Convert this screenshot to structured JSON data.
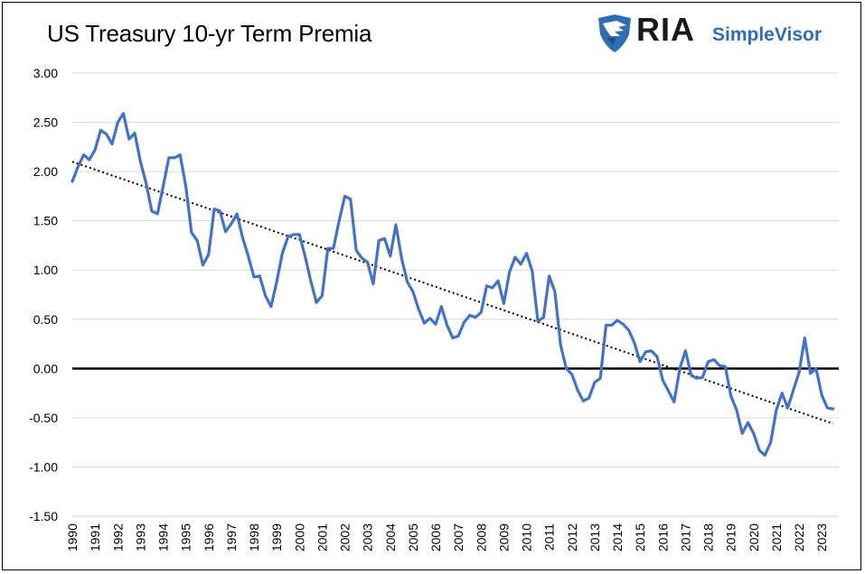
{
  "chart_data": {
    "type": "line",
    "title": "US Treasury 10-yr Term Premia",
    "xlabel": "",
    "ylabel": "",
    "ylim": [
      -1.5,
      3.0
    ],
    "ytick_step": 0.5,
    "xlim": [
      1990,
      2023.75
    ],
    "yticks": [
      "3.00",
      "2.50",
      "2.00",
      "1.50",
      "1.00",
      "0.50",
      "0.00",
      "-0.50",
      "-1.00",
      "-1.50"
    ],
    "xticks": [
      "1990",
      "1991",
      "1992",
      "1993",
      "1994",
      "1995",
      "1996",
      "1997",
      "1998",
      "1999",
      "2000",
      "2001",
      "2002",
      "2003",
      "2004",
      "2005",
      "2006",
      "2007",
      "2008",
      "2009",
      "2010",
      "2011",
      "2012",
      "2013",
      "2014",
      "2015",
      "2016",
      "2017",
      "2018",
      "2019",
      "2020",
      "2021",
      "2022",
      "2023"
    ],
    "grid": true,
    "zero_line": true,
    "series": [
      {
        "color": "#4472c4",
        "x": [
          1990.0,
          1990.25,
          1990.5,
          1990.75,
          1991.0,
          1991.25,
          1991.5,
          1991.75,
          1992.0,
          1992.25,
          1992.5,
          1992.75,
          1993.0,
          1993.25,
          1993.5,
          1993.75,
          1994.0,
          1994.25,
          1994.5,
          1994.75,
          1995.0,
          1995.25,
          1995.5,
          1995.75,
          1996.0,
          1996.25,
          1996.5,
          1996.75,
          1997.0,
          1997.25,
          1997.5,
          1997.75,
          1998.0,
          1998.25,
          1998.5,
          1998.75,
          1999.0,
          1999.25,
          1999.5,
          1999.75,
          2000.0,
          2000.25,
          2000.5,
          2000.75,
          2001.0,
          2001.25,
          2001.5,
          2001.75,
          2002.0,
          2002.25,
          2002.5,
          2002.75,
          2003.0,
          2003.25,
          2003.5,
          2003.75,
          2004.0,
          2004.25,
          2004.5,
          2004.75,
          2005.0,
          2005.25,
          2005.5,
          2005.75,
          2006.0,
          2006.25,
          2006.5,
          2006.75,
          2007.0,
          2007.25,
          2007.5,
          2007.75,
          2008.0,
          2008.25,
          2008.5,
          2008.75,
          2009.0,
          2009.25,
          2009.5,
          2009.75,
          2010.0,
          2010.25,
          2010.5,
          2010.75,
          2011.0,
          2011.25,
          2011.5,
          2011.75,
          2012.0,
          2012.25,
          2012.5,
          2012.75,
          2013.0,
          2013.25,
          2013.5,
          2013.75,
          2014.0,
          2014.25,
          2014.5,
          2014.75,
          2015.0,
          2015.25,
          2015.5,
          2015.75,
          2016.0,
          2016.25,
          2016.5,
          2016.75,
          2017.0,
          2017.25,
          2017.5,
          2017.75,
          2018.0,
          2018.25,
          2018.5,
          2018.75,
          2019.0,
          2019.25,
          2019.5,
          2019.75,
          2020.0,
          2020.25,
          2020.5,
          2020.75,
          2021.0,
          2021.25,
          2021.5,
          2021.75,
          2022.0,
          2022.25,
          2022.5,
          2022.75,
          2023.0,
          2023.25,
          2023.5
        ],
        "values": [
          1.9,
          2.05,
          2.17,
          2.12,
          2.22,
          2.42,
          2.38,
          2.28,
          2.5,
          2.59,
          2.33,
          2.39,
          2.1,
          1.88,
          1.6,
          1.57,
          1.85,
          2.14,
          2.14,
          2.17,
          1.85,
          1.38,
          1.3,
          1.05,
          1.16,
          1.62,
          1.6,
          1.39,
          1.47,
          1.57,
          1.33,
          1.14,
          0.93,
          0.94,
          0.74,
          0.63,
          0.88,
          1.17,
          1.34,
          1.36,
          1.36,
          1.14,
          0.89,
          0.67,
          0.74,
          1.22,
          1.22,
          1.5,
          1.75,
          1.72,
          1.2,
          1.12,
          1.08,
          0.86,
          1.3,
          1.32,
          1.14,
          1.46,
          1.12,
          0.88,
          0.78,
          0.6,
          0.46,
          0.51,
          0.45,
          0.63,
          0.44,
          0.31,
          0.33,
          0.47,
          0.54,
          0.52,
          0.57,
          0.84,
          0.82,
          0.89,
          0.66,
          0.98,
          1.13,
          1.06,
          1.17,
          0.99,
          0.48,
          0.52,
          0.94,
          0.78,
          0.24,
          0.0,
          -0.06,
          -0.22,
          -0.33,
          -0.3,
          -0.14,
          -0.1,
          0.44,
          0.44,
          0.49,
          0.45,
          0.39,
          0.26,
          0.07,
          0.17,
          0.18,
          0.12,
          -0.12,
          -0.23,
          -0.34,
          0.0,
          0.18,
          -0.07,
          -0.1,
          -0.09,
          0.07,
          0.09,
          0.03,
          0.02,
          -0.28,
          -0.42,
          -0.66,
          -0.55,
          -0.66,
          -0.83,
          -0.88,
          -0.75,
          -0.42,
          -0.25,
          -0.4,
          -0.22,
          -0.04,
          0.31,
          -0.05,
          0.0,
          -0.27,
          -0.4,
          -0.41
        ]
      }
    ],
    "trendline": {
      "style": "dotted",
      "color": "#000000",
      "x": [
        1990.0,
        2023.5
      ],
      "values": [
        2.1,
        -0.56
      ]
    }
  },
  "branding": {
    "brand_main": "RIA",
    "brand_sub": "SimpleVisor",
    "logo_icon": "eagle-shield-icon",
    "brand_color": "#2f6db5"
  }
}
